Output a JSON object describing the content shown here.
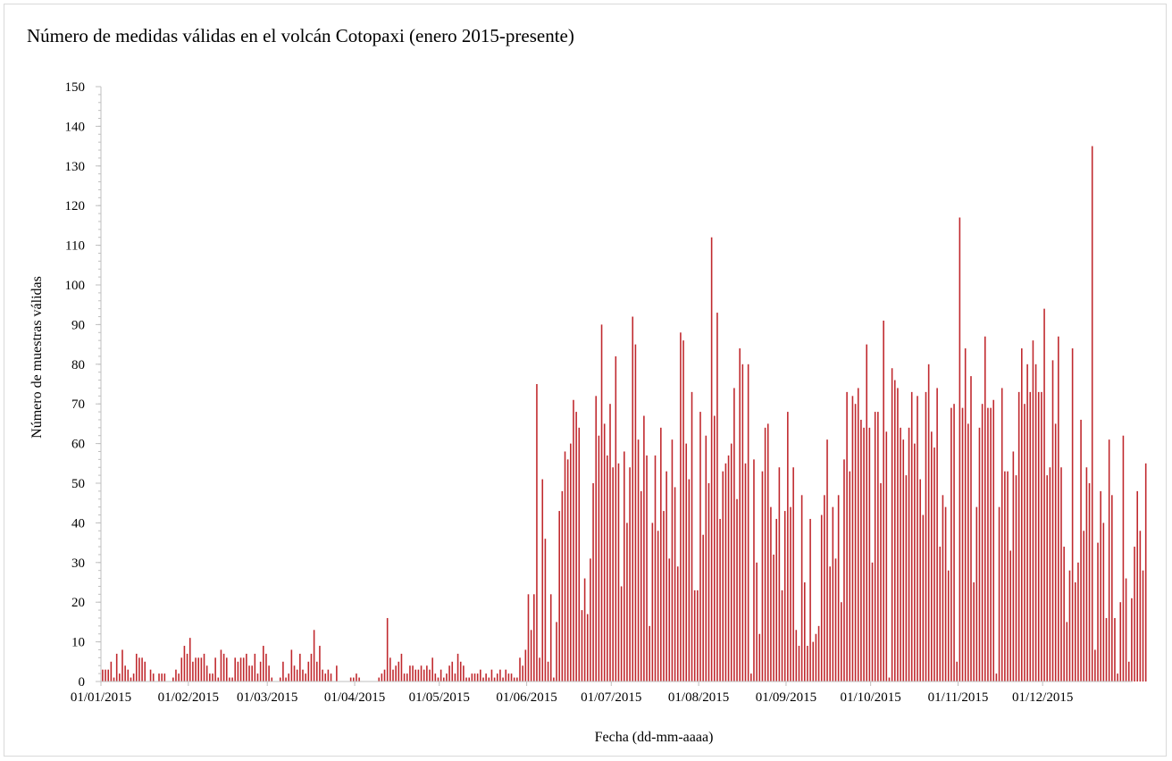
{
  "chart_data": {
    "type": "bar",
    "title": "Número de medidas válidas en el volcán Cotopaxi (enero 2015-presente)",
    "xlabel": "Fecha (dd-mm-aaaa)",
    "ylabel": "Número de muestras válidas",
    "ylim": [
      0,
      150
    ],
    "yticks": [
      0,
      10,
      20,
      30,
      40,
      50,
      60,
      70,
      80,
      90,
      100,
      110,
      120,
      130,
      140,
      150
    ],
    "x_start": "01/01/2015",
    "x_end": "31/12/2015",
    "xtick_labels": [
      "01/01/2015",
      "01/02/2015",
      "01/03/2015",
      "01/04/2015",
      "01/05/2015",
      "01/06/2015",
      "01/07/2015",
      "01/08/2015",
      "01/09/2015",
      "01/10/2015",
      "01/11/2015",
      "01/12/2015"
    ],
    "grid": false,
    "legend": "none",
    "bar_color": "#c0282d",
    "values": [
      3,
      3,
      3,
      5,
      1,
      7,
      2,
      8,
      4,
      3,
      1,
      2,
      7,
      6,
      6,
      5,
      0,
      3,
      2,
      0,
      2,
      2,
      2,
      0,
      0,
      1,
      3,
      2,
      6,
      9,
      7,
      11,
      5,
      6,
      6,
      6,
      7,
      4,
      2,
      2,
      6,
      1,
      8,
      7,
      6,
      1,
      1,
      6,
      5,
      6,
      6,
      7,
      4,
      4,
      7,
      2,
      5,
      9,
      7,
      4,
      1,
      0,
      0,
      1,
      5,
      1,
      2,
      8,
      4,
      3,
      7,
      3,
      2,
      5,
      7,
      13,
      5,
      9,
      3,
      2,
      3,
      2,
      0,
      4,
      0,
      0,
      0,
      0,
      1,
      1,
      2,
      1,
      0,
      0,
      0,
      0,
      0,
      0,
      1,
      2,
      3,
      16,
      6,
      3,
      4,
      5,
      7,
      2,
      2,
      4,
      4,
      3,
      3,
      4,
      3,
      4,
      3,
      6,
      2,
      1,
      3,
      1,
      2,
      4,
      5,
      2,
      7,
      5,
      4,
      1,
      1,
      2,
      2,
      2,
      3,
      1,
      2,
      1,
      3,
      1,
      2,
      3,
      1,
      3,
      2,
      2,
      1,
      1,
      6,
      4,
      8,
      22,
      13,
      22,
      75,
      6,
      51,
      36,
      5,
      22,
      1,
      15,
      43,
      48,
      58,
      56,
      60,
      71,
      68,
      64,
      18,
      26,
      17,
      31,
      50,
      72,
      62,
      90,
      65,
      57,
      70,
      54,
      82,
      55,
      24,
      58,
      40,
      54,
      92,
      85,
      61,
      48,
      67,
      57,
      14,
      40,
      57,
      38,
      64,
      43,
      53,
      31,
      61,
      49,
      29,
      88,
      86,
      60,
      51,
      73,
      23,
      23,
      68,
      37,
      62,
      50,
      112,
      67,
      93,
      41,
      53,
      55,
      57,
      60,
      74,
      46,
      84,
      80,
      55,
      80,
      2,
      56,
      30,
      12,
      53,
      64,
      65,
      44,
      32,
      41,
      54,
      23,
      43,
      68,
      44,
      54,
      13,
      9,
      47,
      25,
      9,
      41,
      10,
      12,
      14,
      42,
      47,
      61,
      29,
      44,
      31,
      47,
      20,
      56,
      73,
      53,
      72,
      70,
      74,
      66,
      64,
      85,
      64,
      30,
      68,
      68,
      50,
      91,
      63,
      1,
      79,
      76,
      74,
      64,
      61,
      52,
      64,
      73,
      60,
      72,
      51,
      42,
      73,
      80,
      63,
      59,
      74,
      34,
      47,
      44,
      28,
      69,
      70,
      5,
      117,
      69,
      84,
      65,
      77,
      25,
      44,
      64,
      70,
      87,
      69,
      69,
      71,
      2,
      44,
      74,
      53,
      53,
      33,
      58,
      52,
      73,
      84,
      70,
      80,
      73,
      86,
      80,
      73,
      73,
      94,
      52,
      54,
      81,
      65,
      87,
      54,
      34,
      15,
      28,
      84,
      25,
      30,
      66,
      38,
      54,
      50,
      135,
      8,
      35,
      48,
      40,
      16,
      61,
      47,
      16,
      2,
      20,
      62,
      26,
      5,
      21,
      34,
      48,
      38,
      28,
      55
    ]
  }
}
